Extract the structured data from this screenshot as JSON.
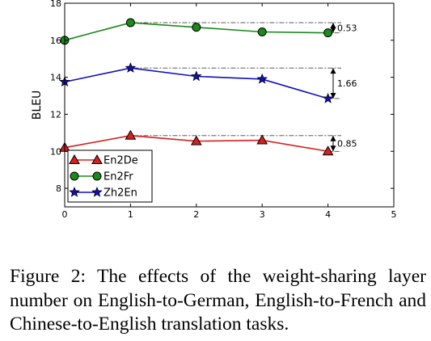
{
  "chart_data": {
    "type": "line",
    "xlabel": "",
    "ylabel": "BLEU",
    "xlim": [
      0,
      5
    ],
    "ylim": [
      7,
      18
    ],
    "xticks": [
      0,
      1,
      2,
      3,
      4,
      5
    ],
    "yticks": [
      8,
      10,
      12,
      14,
      16,
      18
    ],
    "x": [
      0,
      1,
      2,
      3,
      4
    ],
    "grid": false,
    "legend_position": "lower-left",
    "series": [
      {
        "name": "En2De",
        "color": "#d62020",
        "marker": "triangle",
        "values": [
          10.2,
          10.85,
          10.55,
          10.6,
          10.0
        ]
      },
      {
        "name": "En2Fr",
        "color": "#1a8a1a",
        "marker": "circle",
        "values": [
          16.0,
          16.95,
          16.7,
          16.45,
          16.4
        ]
      },
      {
        "name": "Zh2En",
        "color": "#1010c0",
        "marker": "star",
        "values": [
          13.75,
          14.5,
          14.05,
          13.9,
          12.85
        ]
      }
    ],
    "annotations": [
      {
        "label": "0.53",
        "series": "En2Fr"
      },
      {
        "label": "1.66",
        "series": "Zh2En"
      },
      {
        "label": "0.85",
        "series": "En2De"
      }
    ]
  },
  "caption": "Figure 2: The effects of the weight-sharing layer number on English-to-German, English-to-French and Chinese-to-English translation tasks."
}
